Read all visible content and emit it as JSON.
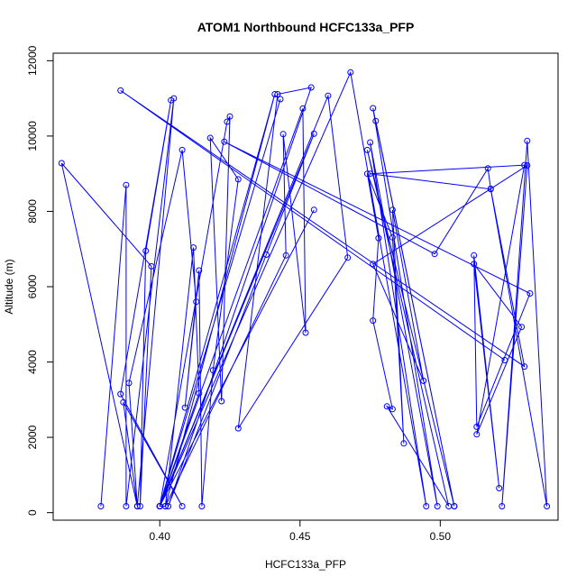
{
  "chart_data": {
    "type": "line",
    "title": "ATOM1 Northbound HCFC133a_PFP",
    "xlabel": "HCFC133a_PFP",
    "ylabel": "Altitude (m)",
    "xlim": [
      0.362,
      0.542
    ],
    "ylim": [
      -200,
      12200
    ],
    "xticks": [
      0.4,
      0.45,
      0.5
    ],
    "xtick_labels": [
      "0.40",
      "0.45",
      "0.50"
    ],
    "yticks": [
      0,
      2000,
      4000,
      6000,
      8000,
      10000,
      12000
    ],
    "ytick_labels": [
      "0",
      "2000",
      "4000",
      "6000",
      "8000",
      "10000",
      "12000"
    ],
    "grid": false,
    "color": "#0000ff",
    "marker": "open-circle",
    "series": [
      {
        "points": [
          [
            0.379,
            170
          ],
          [
            0.388,
            8700
          ],
          [
            0.388,
            170
          ],
          [
            0.405,
            11000
          ],
          [
            0.392,
            170
          ],
          [
            0.365,
            9280
          ],
          [
            0.397,
            6540
          ],
          [
            0.393,
            170
          ],
          [
            0.395,
            6950
          ],
          [
            0.404,
            10950
          ],
          [
            0.386,
            3150
          ],
          [
            0.408,
            170
          ],
          [
            0.387,
            2930
          ],
          [
            0.392,
            170
          ],
          [
            0.389,
            3440
          ],
          [
            0.408,
            9630
          ],
          [
            0.413,
            5600
          ],
          [
            0.409,
            2790
          ],
          [
            0.414,
            6430
          ],
          [
            0.415,
            170
          ],
          [
            0.419,
            3780
          ],
          [
            0.428,
            8850
          ],
          [
            0.418,
            9950
          ],
          [
            0.422,
            2960
          ],
          [
            0.425,
            10520
          ],
          [
            0.424,
            10380
          ],
          [
            0.4,
            170
          ],
          [
            0.414,
            3170
          ],
          [
            0.412,
            7040
          ],
          [
            0.402,
            170
          ],
          [
            0.4,
            170
          ],
          [
            0.443,
            10980
          ],
          [
            0.4,
            170
          ],
          [
            0.441,
            11110
          ],
          [
            0.402,
            170
          ],
          [
            0.445,
            6830
          ],
          [
            0.444,
            10050
          ],
          [
            0.452,
            4780
          ],
          [
            0.451,
            10730
          ],
          [
            0.4,
            170
          ],
          [
            0.455,
            10060
          ],
          [
            0.438,
            6850
          ],
          [
            0.403,
            170
          ],
          [
            0.454,
            11290
          ],
          [
            0.442,
            11110
          ],
          [
            0.428,
            2240
          ],
          [
            0.467,
            6770
          ],
          [
            0.46,
            11070
          ],
          [
            0.4,
            170
          ],
          [
            0.455,
            8040
          ],
          [
            0.4,
            170
          ],
          [
            0.468,
            11690
          ],
          [
            0.495,
            170
          ],
          [
            0.475,
            9830
          ],
          [
            0.499,
            170
          ],
          [
            0.476,
            10740
          ],
          [
            0.505,
            170
          ],
          [
            0.477,
            10400
          ],
          [
            0.505,
            170
          ],
          [
            0.474,
            9630
          ],
          [
            0.503,
            170
          ],
          [
            0.481,
            2820
          ],
          [
            0.483,
            2750
          ],
          [
            0.476,
            5100
          ],
          [
            0.478,
            7290
          ],
          [
            0.474,
            9000
          ],
          [
            0.483,
            7310
          ],
          [
            0.487,
            1840
          ],
          [
            0.483,
            8040
          ],
          [
            0.494,
            3500
          ],
          [
            0.476,
            6600
          ],
          [
            0.531,
            9220
          ],
          [
            0.522,
            170
          ],
          [
            0.531,
            9870
          ],
          [
            0.538,
            170
          ],
          [
            0.518,
            8590
          ],
          [
            0.475,
            9000
          ],
          [
            0.53,
            9230
          ],
          [
            0.513,
            2080
          ],
          [
            0.529,
            4930
          ],
          [
            0.512,
            6600
          ],
          [
            0.521,
            650
          ],
          [
            0.512,
            6830
          ],
          [
            0.513,
            2280
          ],
          [
            0.532,
            5820
          ],
          [
            0.423,
            9850
          ],
          [
            0.498,
            6870
          ],
          [
            0.517,
            9140
          ],
          [
            0.518,
            8600
          ],
          [
            0.53,
            3880
          ],
          [
            0.386,
            11210
          ],
          [
            0.523,
            4050
          ]
        ]
      }
    ]
  }
}
